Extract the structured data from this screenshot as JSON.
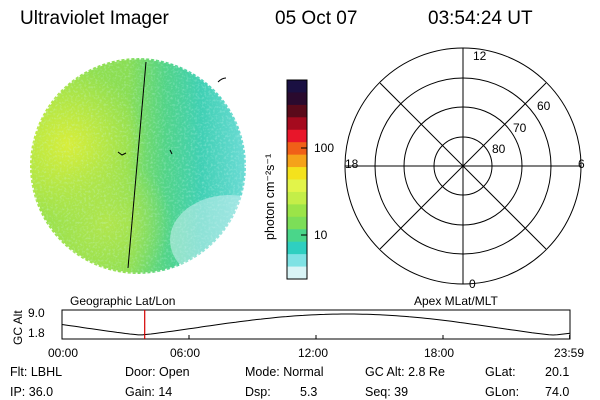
{
  "header": {
    "instrument": "Ultraviolet Imager",
    "date": "05 Oct 07",
    "time": "03:54:24 UT"
  },
  "colorbar": {
    "unit_label": "photon cm⁻²s⁻¹",
    "ticks": [
      "100",
      "10"
    ],
    "scale": "log",
    "colors": [
      "#1a1042",
      "#2a0a2e",
      "#5a0a1a",
      "#a50a1e",
      "#e8162a",
      "#f06018",
      "#f5a21a",
      "#f4e21c",
      "#e2f44a",
      "#c4ee48",
      "#9be448",
      "#7cde58",
      "#4ad68a",
      "#2fcfc0",
      "#7fe2e4",
      "#d9f4f6"
    ]
  },
  "polar_plot": {
    "mlt_labels": {
      "top": "12",
      "left": "18",
      "right": "6",
      "bottom": "0"
    },
    "lat_labels": [
      "60",
      "70",
      "80"
    ],
    "ring_color": "#000000"
  },
  "timeline": {
    "left_label": "Geographic Lat/Lon",
    "right_label": "Apex MLat/MLT",
    "y_axis_label": "GC Alt",
    "y_ticks": [
      "9.0",
      "1.8"
    ],
    "x_ticks": [
      "00:00",
      "06:00",
      "12:00",
      "18:00",
      "23:59"
    ],
    "current_time_hours": 3.907,
    "marker_color": "#d40000"
  },
  "info": {
    "flt": "Flt: LBHL",
    "ip": "IP: 36.0",
    "door": "Door: Open",
    "gain": "Gain: 14",
    "mode": "Mode: Normal",
    "dsp_label": "Dsp:",
    "dsp_value": "5.3",
    "gc_alt": "GC Alt: 2.8 Re",
    "seq": "Seq: 39",
    "glat_label": "GLat:",
    "glat_value": "20.1",
    "glon_label": "GLon:",
    "glon_value": "74.0"
  }
}
